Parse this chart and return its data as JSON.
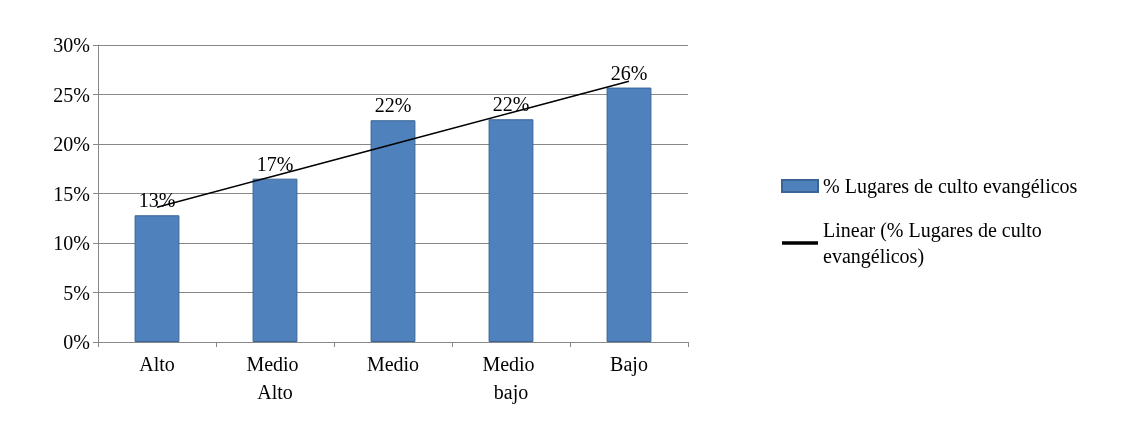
{
  "chart_data": {
    "type": "bar",
    "categories": [
      "Alto",
      "Medio Alto",
      "Medio",
      "Medio bajo",
      "Bajo"
    ],
    "series": [
      {
        "name": "% Lugares de culto evangélicos",
        "color": "#4f81bd",
        "values": [
          12.8,
          16.5,
          22.4,
          22.5,
          25.7
        ],
        "value_labels": [
          "13%",
          "17%",
          "22%",
          "22%",
          "26%"
        ]
      },
      {
        "name": "Linear (% Lugares de culto evangélicos)",
        "type": "line",
        "color": "#000000",
        "marker": "none",
        "line_style": "solid",
        "values": [
          13.62,
          16.8,
          19.98,
          23.16,
          26.34
        ]
      }
    ],
    "ylim": [
      0,
      30
    ],
    "yticks": [
      {
        "value": 0,
        "label": "0%"
      },
      {
        "value": 5,
        "label": "5%"
      },
      {
        "value": 10,
        "label": "10%"
      },
      {
        "value": 15,
        "label": "15%"
      },
      {
        "value": 20,
        "label": "20%"
      },
      {
        "value": 25,
        "label": "25%"
      },
      {
        "value": 30,
        "label": "30%"
      }
    ],
    "grid": "y",
    "legend": "right"
  }
}
